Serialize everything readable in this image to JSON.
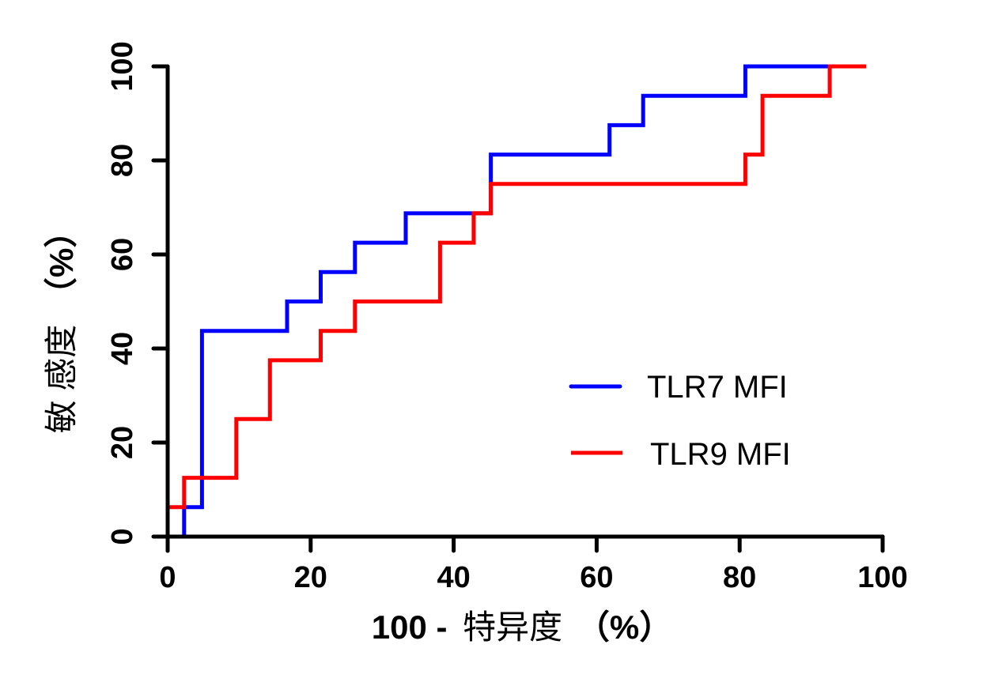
{
  "chart_data": {
    "type": "line",
    "subtype": "roc-step",
    "title": "",
    "xlabel_num": "100 -",
    "xlabel_cjk": "特异度",
    "xlabel_pct": "（%）",
    "ylabel_cjk": "敏 感度",
    "ylabel_pct": "（%）",
    "xlim": [
      0,
      100
    ],
    "ylim": [
      0,
      100
    ],
    "xticks": [
      0,
      20,
      40,
      60,
      80,
      100
    ],
    "yticks": [
      0,
      20,
      40,
      60,
      80,
      100
    ],
    "xtick_labels": [
      "0",
      "20",
      "40",
      "60",
      "80",
      "100"
    ],
    "ytick_labels": [
      "0",
      "20",
      "40",
      "60",
      "80",
      "100"
    ],
    "grid": false,
    "legend_position": "center-right",
    "series": [
      {
        "name": "TLR7 MFI",
        "color": "#0000ff",
        "x": [
          2.3,
          2.3,
          4.8,
          4.8,
          16.7,
          16.7,
          21.4,
          21.4,
          26.2,
          26.2,
          33.3,
          33.3,
          45.2,
          45.2,
          61.8,
          61.8,
          66.5,
          66.5,
          80.8,
          80.8,
          92.6
        ],
        "y": [
          0,
          6.25,
          6.25,
          43.75,
          43.75,
          50,
          50,
          56.25,
          56.25,
          62.5,
          62.5,
          68.75,
          68.75,
          81.25,
          81.25,
          87.5,
          87.5,
          93.75,
          93.75,
          100,
          100
        ]
      },
      {
        "name": "TLR9 MFI",
        "color": "#ff0000",
        "x": [
          0,
          2.3,
          2.3,
          9.6,
          9.6,
          14.3,
          14.3,
          21.4,
          21.4,
          26.2,
          26.2,
          38.1,
          38.1,
          42.8,
          42.8,
          45.2,
          45.2,
          80.8,
          80.8,
          83.2,
          83.2,
          92.6,
          92.6,
          97.7
        ],
        "y": [
          6.25,
          6.25,
          12.5,
          12.5,
          25,
          25,
          37.5,
          37.5,
          43.75,
          43.75,
          50,
          50,
          62.5,
          62.5,
          68.75,
          68.75,
          75,
          75,
          81.25,
          81.25,
          93.75,
          93.75,
          100,
          100
        ]
      }
    ]
  }
}
